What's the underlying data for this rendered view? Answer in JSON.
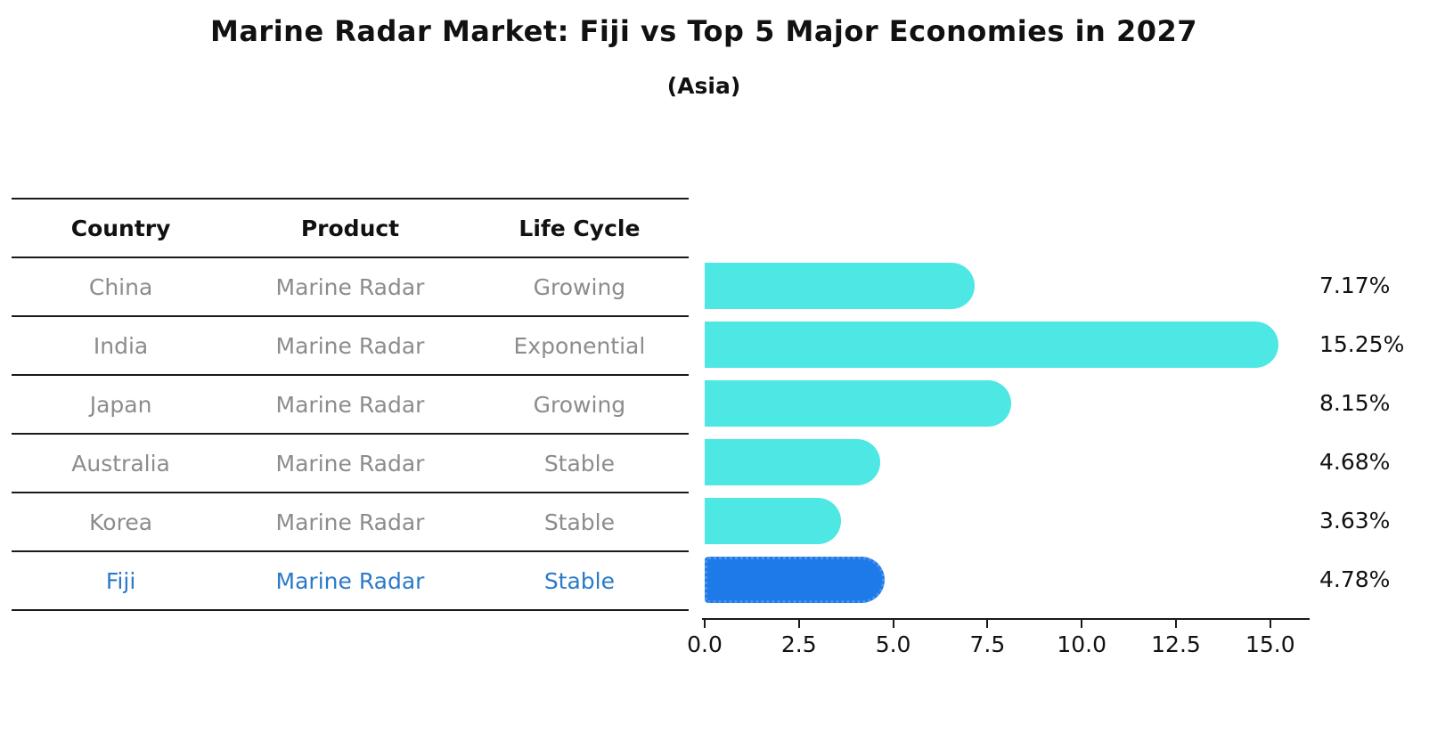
{
  "title": "Marine Radar Market: Fiji vs Top 5 Major Economies in 2027",
  "subtitle": "(Asia)",
  "table": {
    "headers": [
      "Country",
      "Product",
      "Life Cycle"
    ],
    "rows": [
      {
        "country": "China",
        "product": "Marine Radar",
        "life_cycle": "Growing",
        "highlight": false
      },
      {
        "country": "India",
        "product": "Marine Radar",
        "life_cycle": "Exponential",
        "highlight": false
      },
      {
        "country": "Japan",
        "product": "Marine Radar",
        "life_cycle": "Growing",
        "highlight": false
      },
      {
        "country": "Australia",
        "product": "Marine Radar",
        "life_cycle": "Stable",
        "highlight": false
      },
      {
        "country": "Korea",
        "product": "Marine Radar",
        "life_cycle": "Stable",
        "highlight": false
      },
      {
        "country": "Fiji",
        "product": "Marine Radar",
        "life_cycle": "Stable",
        "highlight": true
      }
    ]
  },
  "chart_data": {
    "type": "bar",
    "orientation": "horizontal",
    "title": "Marine Radar Market: Fiji vs Top 5 Major Economies in 2027",
    "subtitle": "(Asia)",
    "categories": [
      "China",
      "India",
      "Japan",
      "Australia",
      "Korea",
      "Fiji"
    ],
    "values": [
      7.17,
      15.25,
      8.15,
      4.68,
      3.63,
      4.78
    ],
    "labels": [
      "7.17%",
      "15.25%",
      "8.15%",
      "4.68%",
      "3.63%",
      "4.78%"
    ],
    "xlim": [
      0,
      16.1
    ],
    "xticks": [
      0.0,
      2.5,
      5.0,
      7.5,
      10.0,
      12.5,
      15.0
    ],
    "xtick_labels": [
      "0.0",
      "2.5",
      "5.0",
      "7.5",
      "10.0",
      "12.5",
      "15.0"
    ],
    "grid": false,
    "legend": false,
    "bar_color": "#4de7e4",
    "highlight_color": "#1e7ae8",
    "highlight_index": 5,
    "highlight_text_color": "#2a7ac8"
  }
}
